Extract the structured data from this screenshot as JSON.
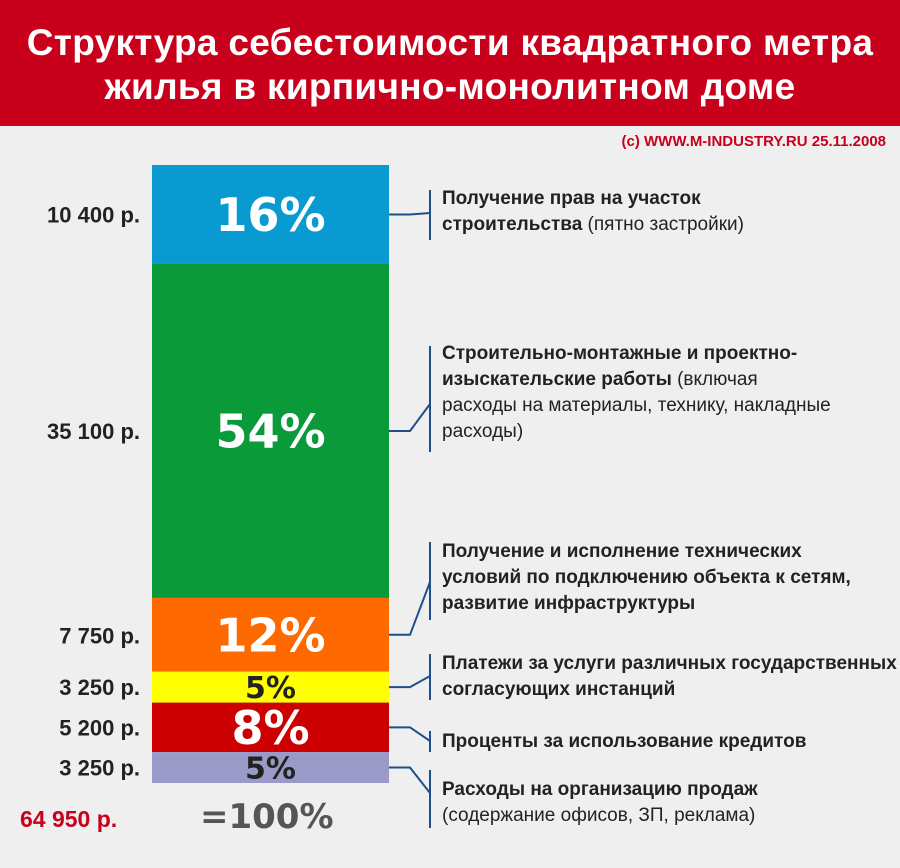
{
  "title": {
    "line1": "Структура себестоимости квадратного метра",
    "line2": "жилья в кирпично-монолитном доме"
  },
  "source": "(с) WWW.M-INDUSTRY.RU  25.11.2008",
  "chart_data": {
    "type": "stacked-bar",
    "segments": [
      {
        "value_label": "10 400 р.",
        "value": 10400,
        "percent_label": "16%",
        "percent": 16,
        "color": "#0a9ad2",
        "text_color": "#ffffff",
        "desc_bold": "Получение прав на участок строительства",
        "desc_normal": "(пятно застройки)"
      },
      {
        "value_label": "35 100 р.",
        "value": 35100,
        "percent_label": "54%",
        "percent": 54,
        "color": "#0a9a3a",
        "text_color": "#ffffff",
        "desc_bold": "Строительно-монтажные и проектно-изыскательские работы",
        "desc_normal": "(включая расходы на материалы, технику, накладные расходы)"
      },
      {
        "value_label": "7 750 р.",
        "value": 7750,
        "percent_label": "12%",
        "percent": 12,
        "color": "#ff6a00",
        "text_color": "#ffffff",
        "desc_bold": "Получение и исполнение технических условий по подключению объекта к сетям, развитие инфраструктуры",
        "desc_normal": ""
      },
      {
        "value_label": "3 250 р.",
        "value": 3250,
        "percent_label": "5%",
        "percent": 5,
        "color": "#ffff00",
        "text_color": "#222222",
        "desc_bold": "Платежи за услуги различных государственных согласующих инстанций",
        "desc_normal": ""
      },
      {
        "value_label": "5 200 р.",
        "value": 5200,
        "percent_label": "8%",
        "percent": 8,
        "color": "#cc0000",
        "text_color": "#ffffff",
        "desc_bold": "Проценты за использование кредитов",
        "desc_normal": ""
      },
      {
        "value_label": "3 250 р.",
        "value": 3250,
        "percent_label": "5%",
        "percent": 5,
        "color": "#9a9ac8",
        "text_color": "#222222",
        "desc_bold": "Расходы на организацию продаж",
        "desc_normal": "(содержание офисов, ЗП, реклама)"
      }
    ],
    "total_value_label": "64 950 р.",
    "total_percent_label": "=100%"
  }
}
